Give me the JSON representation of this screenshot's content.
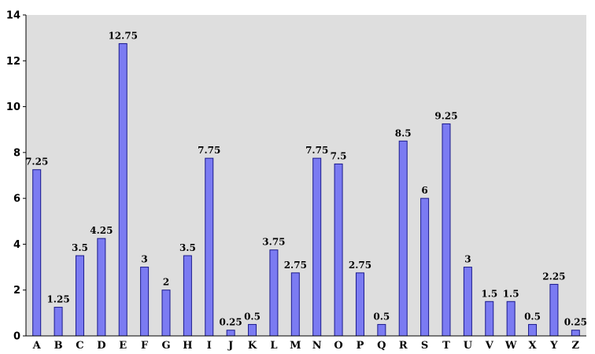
{
  "chart_data": {
    "type": "bar",
    "categories": [
      "A",
      "B",
      "C",
      "D",
      "E",
      "F",
      "G",
      "H",
      "I",
      "J",
      "K",
      "L",
      "M",
      "N",
      "O",
      "P",
      "Q",
      "R",
      "S",
      "T",
      "U",
      "V",
      "W",
      "X",
      "Y",
      "Z"
    ],
    "values": [
      7.25,
      1.25,
      3.5,
      4.25,
      12.75,
      3,
      2,
      3.5,
      7.75,
      0.25,
      0.5,
      3.75,
      2.75,
      7.75,
      7.5,
      2.75,
      0.5,
      8.5,
      6,
      9.25,
      3,
      1.5,
      1.5,
      0.5,
      2.25,
      0.25
    ],
    "data_labels": [
      "7.25",
      "1.25",
      "3.5",
      "4.25",
      "12.75",
      "3",
      "2",
      "3.5",
      "7.75",
      "0.25",
      "0.5",
      "3.75",
      "2.75",
      "7.75",
      "7.5",
      "2.75",
      "0.5",
      "8.5",
      "6",
      "9.25",
      "3",
      "1.5",
      "1.5",
      "0.5",
      "2.25",
      "0.25"
    ],
    "yticks": [
      "0",
      "2",
      "4",
      "6",
      "8",
      "10",
      "12",
      "14"
    ],
    "ylim": [
      0,
      14
    ],
    "grid": false,
    "legend": "none",
    "title": "",
    "xlabel": "",
    "ylabel": "",
    "colors": {
      "bar_fill": "#7b7bf2",
      "bar_stroke": "#1a1a8c",
      "plot_background": "#dedede",
      "axis": "#000000"
    }
  }
}
